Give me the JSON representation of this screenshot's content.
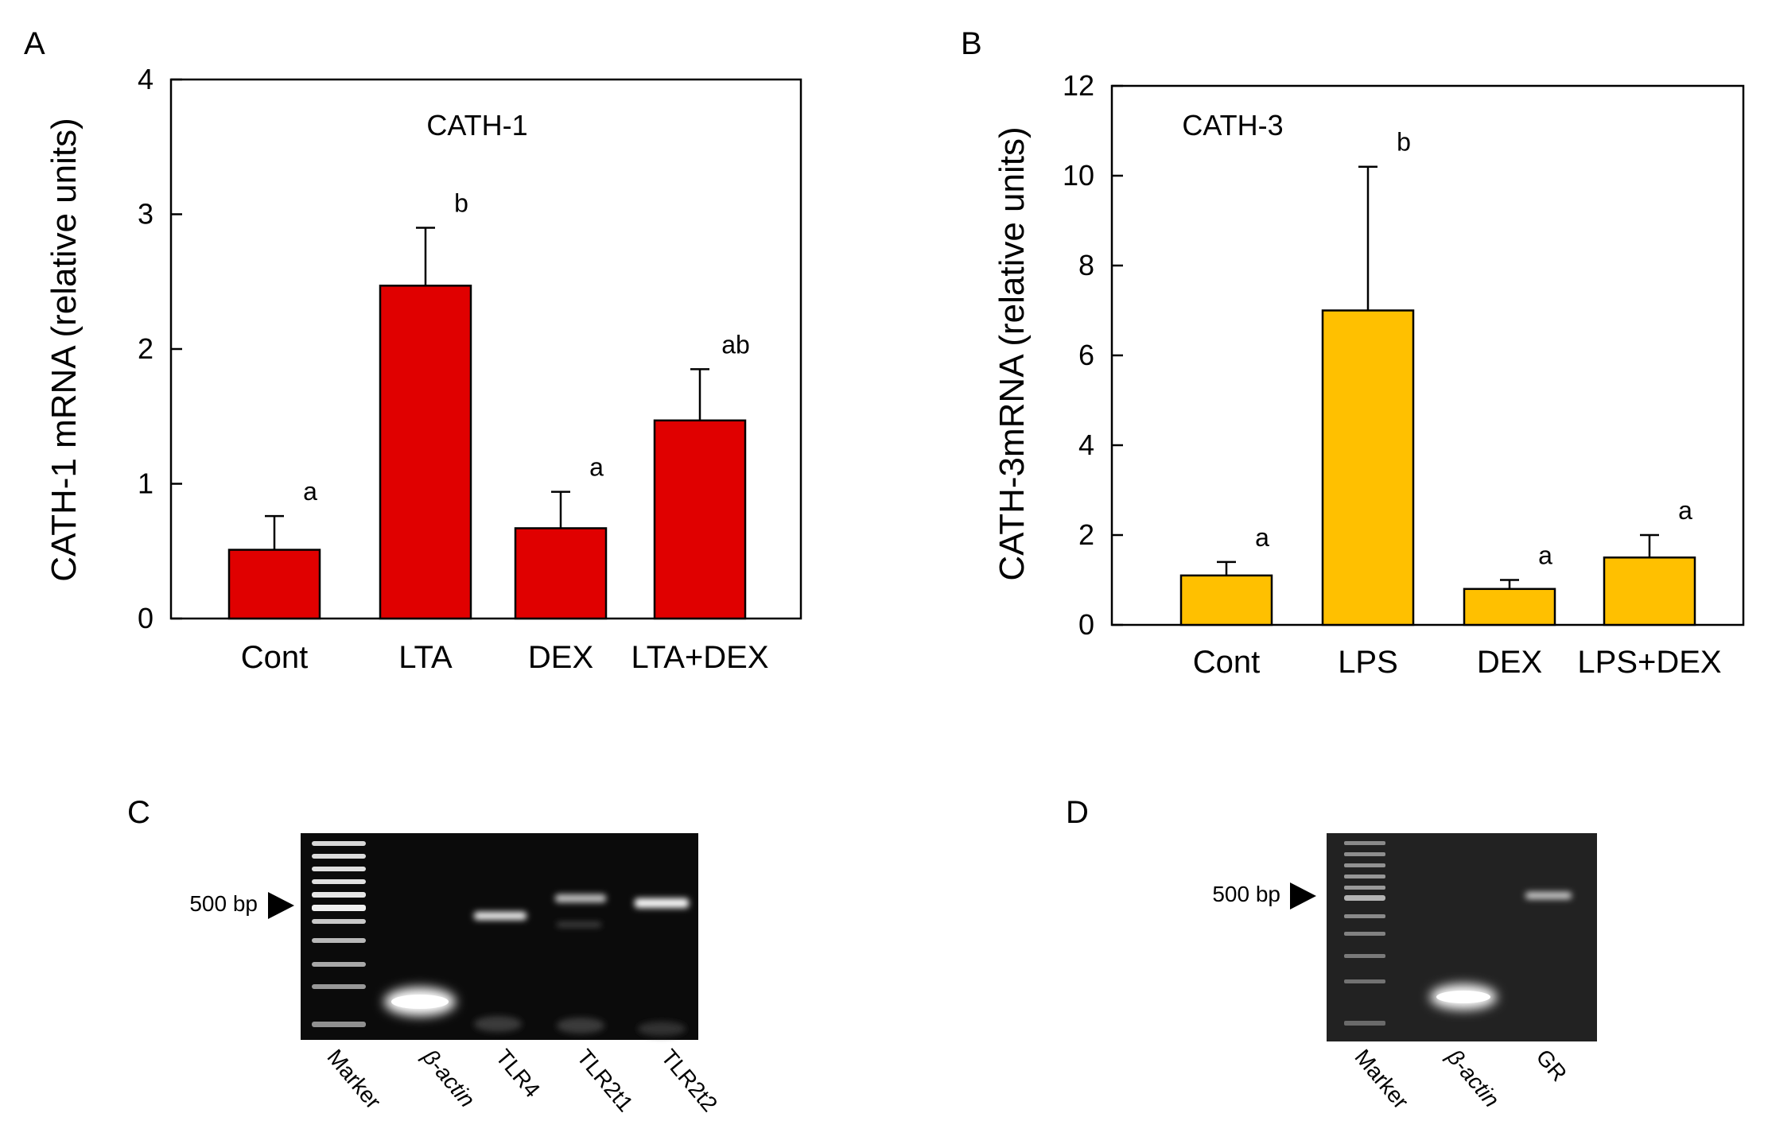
{
  "chart_data": [
    {
      "panel": "A",
      "type": "bar",
      "title": "CATH-1",
      "ylabel": "CATH-1 mRNA (relative units)",
      "xlabel": "",
      "categories": [
        "Cont",
        "LTA",
        "DEX",
        "LTA+DEX"
      ],
      "values": [
        0.51,
        2.47,
        0.67,
        1.47
      ],
      "errors": [
        0.25,
        0.43,
        0.27,
        0.38
      ],
      "significance": [
        "a",
        "b",
        "a",
        "ab"
      ],
      "ylim": [
        0,
        4
      ],
      "yticks": [
        0,
        1,
        2,
        3,
        4
      ],
      "color": "#e00000"
    },
    {
      "panel": "B",
      "type": "bar",
      "title": "CATH-3",
      "ylabel": "CATH-3mRNA (relative units)",
      "xlabel": "",
      "categories": [
        "Cont",
        "LPS",
        "DEX",
        "LPS+DEX"
      ],
      "values": [
        1.1,
        7.0,
        0.8,
        1.5
      ],
      "errors": [
        0.3,
        3.2,
        0.2,
        0.5
      ],
      "significance": [
        "a",
        "b",
        "a",
        "a"
      ],
      "ylim": [
        0,
        12
      ],
      "yticks": [
        0,
        2,
        4,
        6,
        8,
        10,
        12
      ],
      "color": "#ffc000"
    }
  ],
  "gels": [
    {
      "panel": "C",
      "marker_label": "500 bp",
      "lanes": [
        "Marker",
        "β-actin",
        "TLR4",
        "TLR2t1",
        "TLR2t2"
      ]
    },
    {
      "panel": "D",
      "marker_label": "500 bp",
      "lanes": [
        "Marker",
        "β-actin",
        "GR"
      ]
    }
  ]
}
